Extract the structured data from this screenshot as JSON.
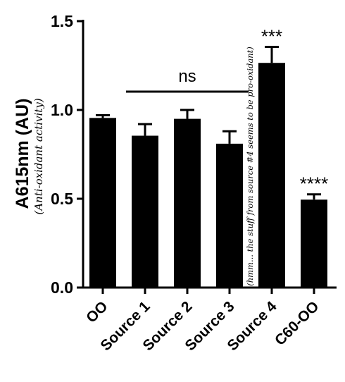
{
  "chart_data": {
    "type": "bar",
    "categories": [
      "OO",
      "Source 1",
      "Source 2",
      "Source 3",
      "Source 4",
      "C60-OO"
    ],
    "values": [
      0.955,
      0.855,
      0.95,
      0.81,
      1.265,
      0.495
    ],
    "errors": [
      0.015,
      0.065,
      0.05,
      0.07,
      0.09,
      0.03
    ],
    "ylabel": "A615nm (AU)",
    "ylabel_note": "(Anti-oxidant activity)",
    "ylim": [
      0,
      1.5
    ],
    "yticks": [
      "0.0",
      "0.5",
      "1.0",
      "1.5"
    ],
    "significance": [
      "",
      "",
      "",
      "",
      "***",
      "****"
    ],
    "ns_label": "ns",
    "annotation": "(hmm... the stuff from source #4 seems to be pro-oxidant)",
    "grid": false,
    "bar_color": "#000000"
  }
}
